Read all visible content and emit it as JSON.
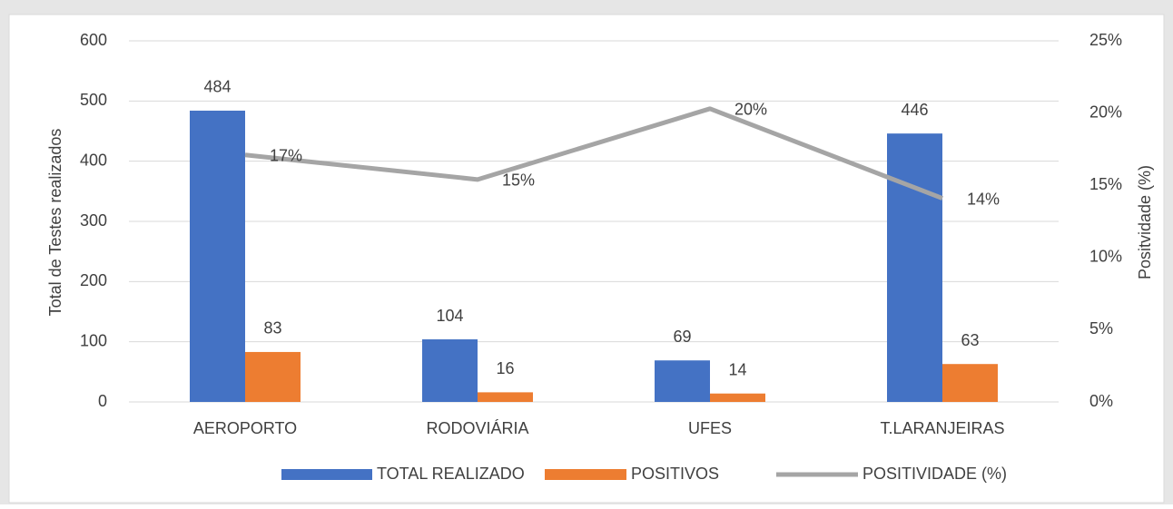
{
  "chart_data": {
    "type": "bar",
    "categories": [
      "AEROPORTO",
      "RODOVIÁRIA",
      "UFES",
      "T.LARANJEIRAS"
    ],
    "series": [
      {
        "name": "TOTAL REALIZADO",
        "color": "#4472c4",
        "values": [
          484,
          104,
          69,
          446
        ]
      },
      {
        "name": "POSITIVOS",
        "color": "#ed7d31",
        "values": [
          83,
          16,
          14,
          63
        ]
      },
      {
        "name": "POSITIVIDADE (%)",
        "color": "#a5a5a5",
        "type": "line",
        "axis": "y2",
        "values": [
          17.1,
          15.4,
          20.3,
          14.1
        ],
        "value_labels": [
          "17%",
          "15%",
          "20%",
          "14%"
        ]
      }
    ],
    "ylabel": "Total de Testes realizados",
    "y2label": "Positvidade (%)",
    "ylim": [
      0,
      600
    ],
    "yticks": [
      0,
      100,
      200,
      300,
      400,
      500,
      600
    ],
    "y2lim": [
      0,
      25
    ],
    "y2ticks": [
      {
        "value": 0,
        "label": "0%"
      },
      {
        "value": 5,
        "label": "5%"
      },
      {
        "value": 10,
        "label": "10%"
      },
      {
        "value": 15,
        "label": "15%"
      },
      {
        "value": 20,
        "label": "20%"
      },
      {
        "value": 25,
        "label": "25%"
      }
    ],
    "grid": true,
    "legend": "bottom"
  }
}
